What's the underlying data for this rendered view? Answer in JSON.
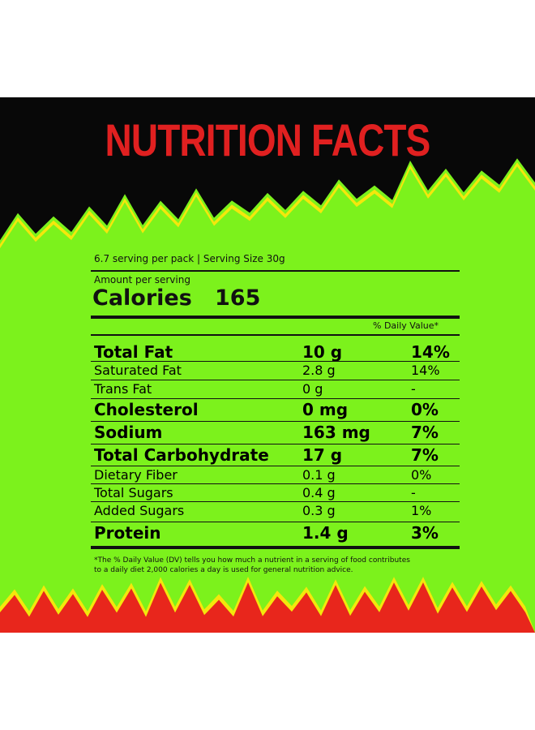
{
  "title": "NUTRITION FACTS",
  "serving": "6.7 serving per pack | Serving Size 30g",
  "amount_label": "Amount per serving",
  "calories": {
    "label": "Calories",
    "value": "165"
  },
  "dv_header": "% Daily Value*",
  "rows": [
    [
      "Total Fat",
      "10 g",
      "14%"
    ],
    [
      "Saturated Fat",
      "2.8 g",
      "14%"
    ],
    [
      "Trans Fat",
      "0 g",
      "-"
    ],
    [
      "Cholesterol",
      "0 mg",
      "0%"
    ],
    [
      "Sodium",
      "163 mg",
      "7%"
    ],
    [
      "Total Carbohydrate",
      "17 g",
      "7%"
    ],
    [
      "Dietary Fiber",
      "0.1 g",
      "0%"
    ],
    [
      "Total Sugars",
      "0.4 g",
      "-"
    ],
    [
      "Added Sugars",
      "0.3 g",
      "1%"
    ],
    [
      "Protein",
      "1.4 g",
      "3%"
    ]
  ],
  "footnote": [
    "*The % Daily Value (DV) tells you how much a nutrient in a serving of food contributes",
    "to a daily diet 2,000 calories a day is used for general nutrition advice."
  ]
}
